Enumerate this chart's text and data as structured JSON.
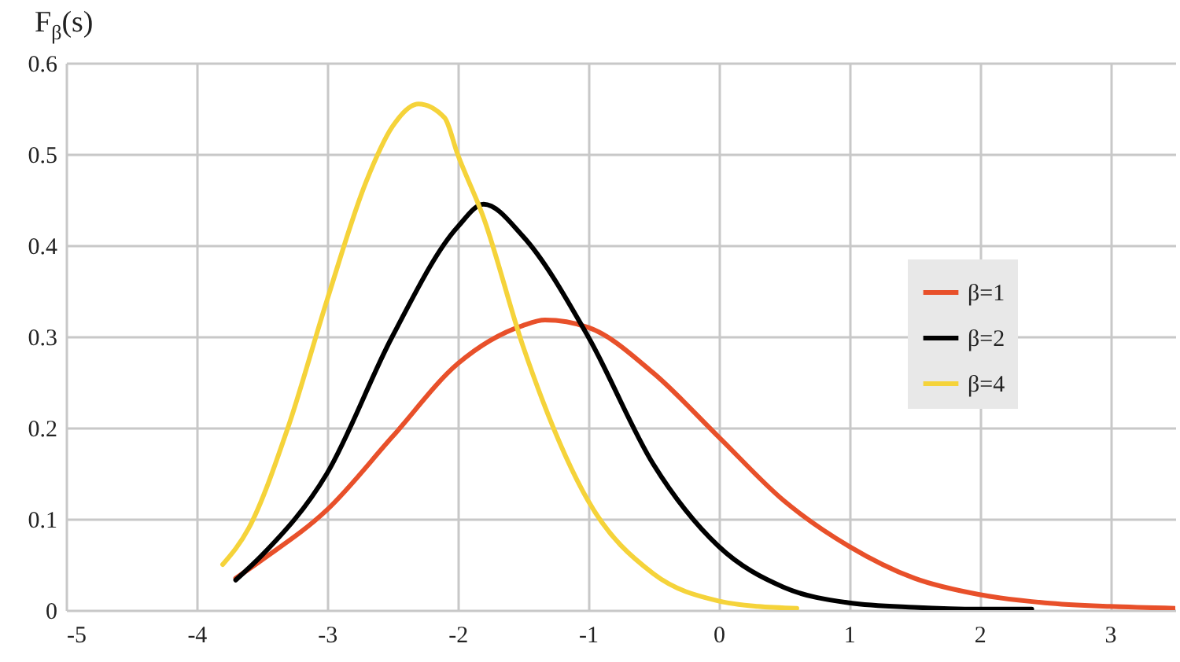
{
  "chart_data": {
    "type": "line",
    "ylabel": "F$_{β}$(s)",
    "xlim": [
      -5,
      3.5
    ],
    "xticks": [
      -5,
      -4,
      -3,
      -2,
      -1,
      0,
      1,
      2,
      3
    ],
    "ylim": [
      0,
      0.6
    ],
    "yticks": [
      0,
      0.1,
      0.2,
      0.3,
      0.4,
      0.5,
      0.6
    ],
    "grid": true,
    "legend": "right",
    "line_style": "solid",
    "series": [
      {
        "name": "β=1",
        "color": "#e8502a",
        "x": [
          -3.7,
          -3.5,
          -3.0,
          -2.5,
          -2.0,
          -1.5,
          -1.33,
          -1.0,
          -0.5,
          0,
          0.5,
          1.0,
          1.5,
          2.0,
          2.5,
          3.0,
          3.5
        ],
        "values": [
          0.035,
          0.055,
          0.11,
          0.19,
          0.27,
          0.312,
          0.318,
          0.31,
          0.26,
          0.19,
          0.12,
          0.07,
          0.035,
          0.017,
          0.008,
          0.004,
          0.002
        ]
      },
      {
        "name": "β=2",
        "color": "#000000",
        "x": [
          -3.7,
          -3.5,
          -3.0,
          -2.5,
          -2.0,
          -1.8,
          -1.5,
          -1.0,
          -0.5,
          0,
          0.5,
          1.0,
          1.5,
          2.0,
          2.4
        ],
        "values": [
          0.033,
          0.06,
          0.15,
          0.3,
          0.42,
          0.445,
          0.41,
          0.3,
          0.16,
          0.07,
          0.025,
          0.008,
          0.003,
          0.001,
          0.001
        ]
      },
      {
        "name": "β=4",
        "color": "#f5d33a",
        "x": [
          -3.8,
          -3.6,
          -3.3,
          -3.0,
          -2.7,
          -2.5,
          -2.3,
          -2.1,
          -2.0,
          -1.8,
          -1.5,
          -1.0,
          -0.5,
          0,
          0.3,
          0.6
        ],
        "values": [
          0.05,
          0.09,
          0.2,
          0.34,
          0.47,
          0.53,
          0.555,
          0.54,
          0.5,
          0.43,
          0.29,
          0.12,
          0.04,
          0.01,
          0.004,
          0.002
        ]
      }
    ]
  }
}
